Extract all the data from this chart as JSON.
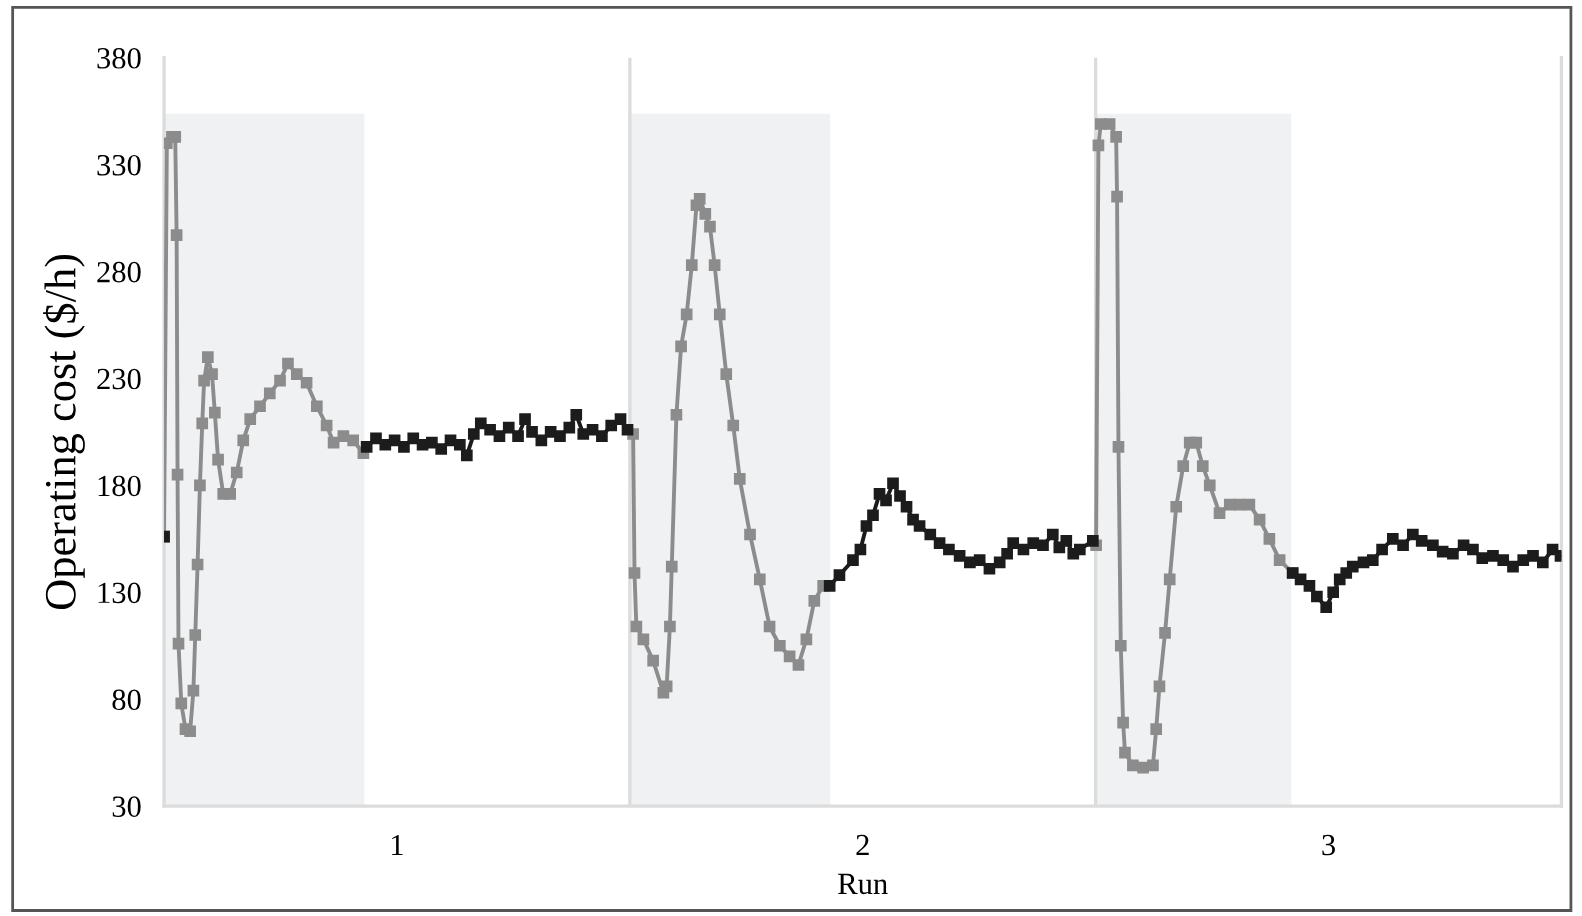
{
  "chart_data": {
    "type": "line",
    "xlabel": "Run",
    "ylabel": "Operating cost ($/h)",
    "xlim": [
      0.5,
      3.5
    ],
    "xticks": [
      1,
      2,
      3
    ],
    "ylim": [
      30,
      380
    ],
    "yticks": [
      30,
      80,
      130,
      180,
      230,
      280,
      330,
      380
    ],
    "grid": false,
    "marker": "square",
    "line_style": "solid",
    "bands": [
      {
        "axis": "x",
        "from": 0.5,
        "to": 0.93,
        "color": "#f0f1f3"
      },
      {
        "axis": "x",
        "from": 1.5,
        "to": 1.93,
        "color": "#f0f1f3"
      },
      {
        "axis": "x",
        "from": 2.5,
        "to": 2.92,
        "color": "#f0f1f3"
      }
    ],
    "ref_lines": [
      {
        "axis": "x",
        "value": 1.5,
        "color": "#dcdcdc"
      },
      {
        "axis": "x",
        "value": 2.5,
        "color": "#dcdcdc"
      }
    ],
    "series": [
      {
        "color": "#8c8c8c",
        "x": [
          0.5,
          0.506,
          0.517,
          0.524,
          0.527,
          0.529,
          0.531,
          0.537,
          0.546,
          0.556,
          0.563,
          0.567,
          0.572,
          0.577,
          0.582,
          0.586,
          0.594,
          0.603,
          0.609,
          0.616,
          0.627,
          0.642,
          0.656,
          0.67,
          0.685,
          0.706,
          0.727,
          0.749,
          0.766,
          0.785,
          0.806,
          0.828,
          0.849,
          0.864,
          0.885,
          0.906,
          0.928,
          1.2,
          1.507,
          1.51,
          1.514,
          1.529,
          1.55,
          1.572,
          1.579,
          1.586,
          1.59,
          1.6,
          1.61,
          1.622,
          1.633,
          1.643,
          1.65,
          1.662,
          1.672,
          1.682,
          1.693,
          1.707,
          1.722,
          1.736,
          1.758,
          1.779,
          1.8,
          1.822,
          1.843,
          1.862,
          1.879,
          1.896,
          1.915,
          2.2,
          2.501,
          2.506,
          2.511,
          2.53,
          2.544,
          2.546,
          2.549,
          2.554,
          2.559,
          2.563,
          2.58,
          2.602,
          2.623,
          2.63,
          2.637,
          2.649,
          2.659,
          2.673,
          2.688,
          2.702,
          2.716,
          2.73,
          2.745,
          2.766,
          2.788,
          2.809,
          2.83,
          2.852,
          2.873,
          2.895,
          2.923
        ],
        "values": [
          156,
          340,
          343,
          343,
          297,
          185,
          106,
          78,
          66,
          65,
          84,
          110,
          143,
          180,
          209,
          229,
          240,
          232,
          214,
          192,
          176,
          176,
          186,
          201,
          211,
          217,
          223,
          229,
          237,
          232,
          228,
          217,
          208,
          200,
          203,
          201,
          195,
          null,
          204,
          139,
          114,
          108,
          98,
          83,
          86,
          114,
          142,
          213,
          245,
          260,
          283,
          311,
          314,
          307,
          301,
          283,
          260,
          232,
          208,
          183,
          157,
          136,
          114,
          105,
          100,
          96,
          108,
          126,
          133,
          null,
          152,
          339,
          349,
          349,
          343,
          315,
          198,
          105,
          69,
          55,
          49,
          48,
          49,
          66,
          86,
          111,
          136,
          170,
          189,
          200,
          200,
          189,
          180,
          167,
          171,
          171,
          171,
          164,
          155,
          145,
          139
        ]
      },
      {
        "color": "#1c1c1c",
        "x": [
          0.5,
          0.7,
          0.935,
          0.955,
          0.975,
          0.995,
          1.015,
          1.035,
          1.055,
          1.075,
          1.095,
          1.115,
          1.135,
          1.15,
          1.165,
          1.18,
          1.2,
          1.22,
          1.24,
          1.26,
          1.275,
          1.29,
          1.31,
          1.33,
          1.35,
          1.37,
          1.385,
          1.4,
          1.42,
          1.44,
          1.46,
          1.48,
          1.495,
          1.7,
          1.929,
          1.95,
          1.979,
          1.995,
          2.008,
          2.022,
          2.036,
          2.05,
          2.065,
          2.08,
          2.094,
          2.108,
          2.122,
          2.145,
          2.165,
          2.185,
          2.208,
          2.23,
          2.251,
          2.272,
          2.294,
          2.31,
          2.323,
          2.345,
          2.366,
          2.387,
          2.408,
          2.422,
          2.437,
          2.452,
          2.466,
          2.494,
          2.7,
          2.923,
          2.94,
          2.959,
          2.975,
          2.995,
          3.01,
          3.024,
          3.038,
          3.052,
          3.075,
          3.095,
          3.115,
          3.138,
          3.16,
          3.181,
          3.2,
          3.224,
          3.245,
          3.267,
          3.29,
          3.31,
          3.33,
          3.353,
          3.375,
          3.396,
          3.418,
          3.439,
          3.46,
          3.481,
          3.498
        ],
        "values": [
          156,
          null,
          198,
          202,
          199,
          201,
          198,
          202,
          199,
          200,
          197,
          201,
          199,
          194,
          204,
          209,
          206,
          203,
          207,
          203,
          211,
          205,
          201,
          205,
          203,
          207,
          213,
          204,
          206,
          203,
          208,
          211,
          206,
          null,
          133,
          138,
          145,
          150,
          161,
          166,
          176,
          173,
          181,
          175,
          170,
          164,
          161,
          157,
          153,
          150,
          147,
          144,
          145,
          141,
          144,
          148,
          153,
          150,
          153,
          152,
          157,
          151,
          154,
          148,
          150,
          154,
          null,
          139,
          136,
          133,
          128,
          123,
          130,
          136,
          139,
          142,
          144,
          145,
          150,
          155,
          152,
          157,
          154,
          152,
          149,
          148,
          152,
          150,
          146,
          147,
          145,
          142,
          145,
          147,
          144,
          150,
          147
        ]
      }
    ]
  }
}
